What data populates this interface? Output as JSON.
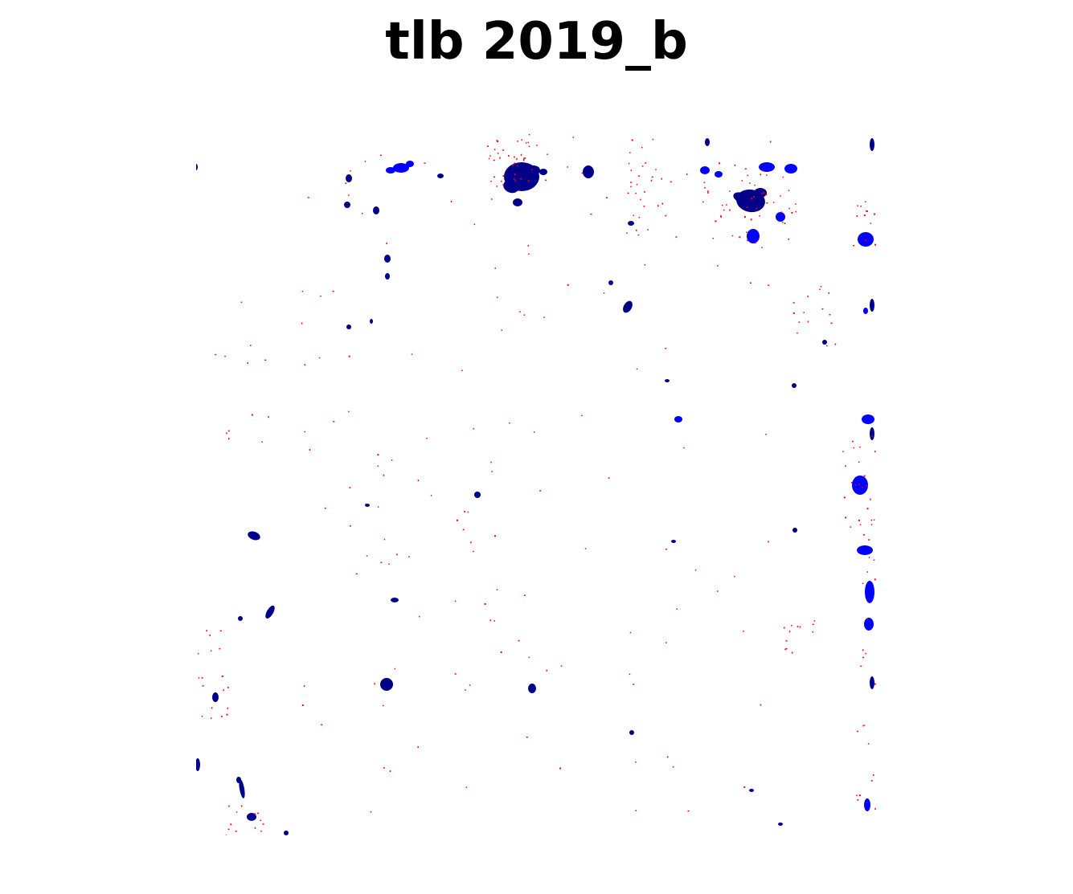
{
  "title": "tlb 2019_b",
  "colors": {
    "background": "#ffffff",
    "water_dark": "#00008b",
    "water_blue": "#0000ff",
    "change_red": "#ff0000"
  }
}
